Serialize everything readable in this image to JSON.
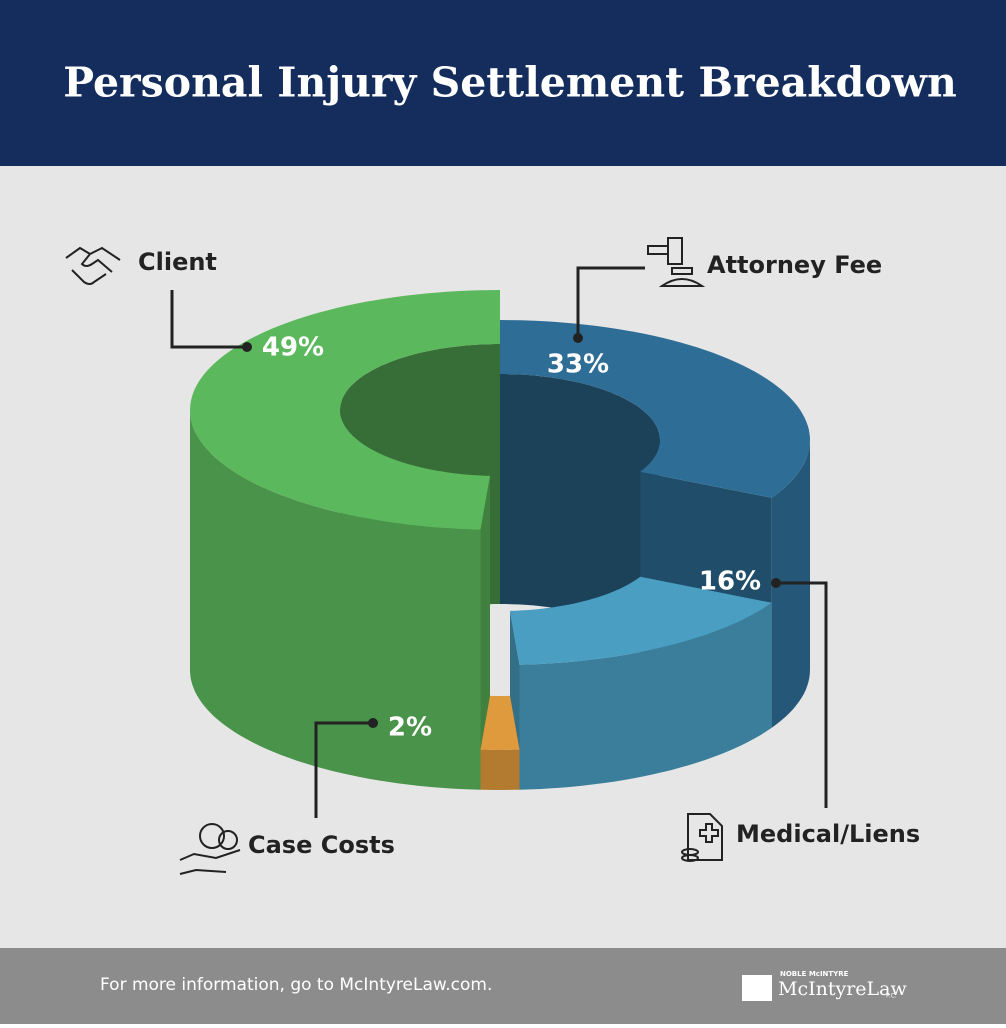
{
  "chart_data": {
    "type": "pie",
    "title": "Personal Injury Settlement Breakdown",
    "categories": [
      "Attorney Fee",
      "Medical/Liens",
      "Case Costs",
      "Client"
    ],
    "values": [
      33,
      16,
      2,
      49
    ],
    "value_labels": [
      "33%",
      "16%",
      "2%",
      "49%"
    ],
    "colors": [
      "#2e6e96",
      "#4a9ec2",
      "#de9a3c",
      "#5cb85c"
    ]
  },
  "footer": {
    "text": "For more information, go to McIntyreLaw.com.",
    "logo_top": "NOBLE McINTYRE",
    "logo_name": "McIntyreLaw",
    "logo_suffix": "P.C."
  }
}
